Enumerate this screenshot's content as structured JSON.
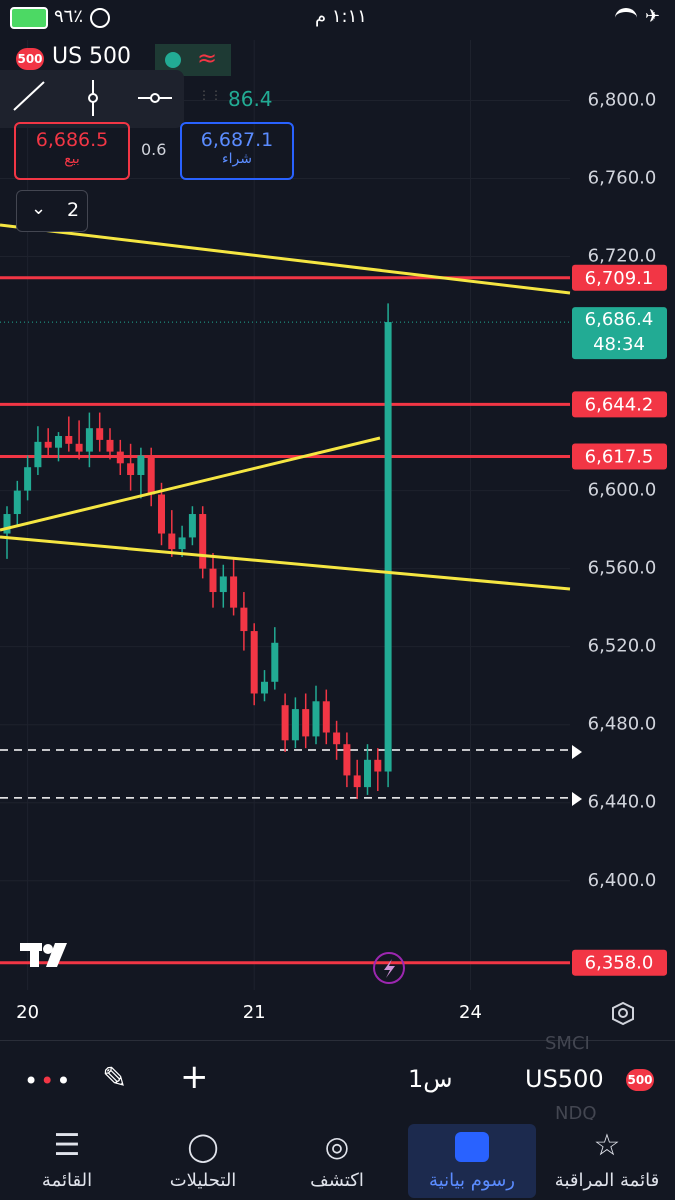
{
  "status_bar": {
    "time": "١:١١ م",
    "battery": "٩٦٪"
  },
  "header": {
    "badge": "500",
    "symbol": "US 500",
    "partial_price": "86.4",
    "sell": {
      "price": "6,686.5",
      "label": "بيع"
    },
    "spread": "0.6",
    "buy": {
      "price": "6,687.1",
      "label": "شراء"
    },
    "indicators_count": "2"
  },
  "chart_data": {
    "type": "candlestick",
    "x": [
      null,
      null,
      "20",
      null,
      null,
      null,
      null,
      null,
      null,
      null,
      null,
      null,
      null,
      null,
      null,
      null,
      null,
      null,
      null,
      null,
      null,
      null,
      null,
      null,
      "21",
      null,
      null,
      null,
      null,
      null,
      null,
      null,
      null,
      null,
      null,
      null,
      null,
      null,
      null,
      null,
      null,
      null,
      null,
      null,
      null,
      "24",
      null,
      null,
      null,
      null,
      null,
      null,
      null,
      null
    ],
    "open": [
      6578,
      6588,
      6600,
      6612,
      6625,
      6622,
      6628,
      6624,
      6620,
      6632,
      6626,
      6620,
      6614,
      6608,
      6618,
      6598,
      6578,
      6570,
      6576,
      6588,
      6560,
      6548,
      6556,
      6540,
      6528,
      6496,
      6502,
      6490,
      6472,
      6488,
      6474,
      6492,
      6476,
      6470,
      6454,
      6448,
      6462,
      6456,
      null,
      null,
      null,
      null,
      null,
      null,
      null,
      null,
      null,
      null,
      null,
      null,
      null,
      null,
      null,
      null
    ],
    "high": [
      6592,
      6605,
      6618,
      6633,
      6632,
      6630,
      6638,
      6636,
      6640,
      6640,
      6632,
      6626,
      6624,
      6622,
      6622,
      6604,
      6590,
      6582,
      6592,
      6592,
      6568,
      6562,
      6566,
      6548,
      6532,
      6508,
      6530,
      6496,
      6494,
      6496,
      6500,
      6498,
      6482,
      6476,
      6462,
      6470,
      6468,
      6696,
      null,
      null,
      null,
      null,
      null,
      null,
      null,
      null,
      null,
      null,
      null,
      null,
      null,
      null,
      null,
      null
    ],
    "low": [
      6565,
      6582,
      6595,
      6608,
      6618,
      6615,
      6620,
      6616,
      6612,
      6620,
      6616,
      6608,
      6600,
      6596,
      6592,
      6572,
      6566,
      6566,
      6572,
      6555,
      6540,
      6540,
      6536,
      6518,
      6490,
      6492,
      6498,
      6466,
      6468,
      6468,
      6470,
      6470,
      6462,
      6448,
      6442,
      6444,
      6446,
      6448,
      null,
      null,
      null,
      null,
      null,
      null,
      null,
      null,
      null,
      null,
      null,
      null,
      null,
      null,
      null,
      null
    ],
    "close": [
      6588,
      6600,
      6612,
      6625,
      6622,
      6628,
      6624,
      6620,
      6632,
      6626,
      6620,
      6614,
      6608,
      6618,
      6598,
      6578,
      6570,
      6576,
      6588,
      6560,
      6548,
      6556,
      6540,
      6528,
      6496,
      6502,
      6522,
      6472,
      6488,
      6474,
      6492,
      6476,
      6470,
      6454,
      6448,
      6462,
      6456,
      6686.4,
      null,
      null,
      null,
      null,
      null,
      null,
      null,
      null,
      null,
      null,
      null,
      null,
      null,
      null,
      null,
      null
    ],
    "colors": {
      "up": "#22ab94",
      "down": "#f23645"
    },
    "ylim": [
      6344,
      6831
    ],
    "yticks": [
      {
        "value": 6800,
        "label": "6,800.0"
      },
      {
        "value": 6760,
        "label": "6,760.0"
      },
      {
        "value": 6720,
        "label": "6,720.0"
      },
      {
        "value": 6600,
        "label": "6,600.0"
      },
      {
        "value": 6560,
        "label": "6,560.0"
      },
      {
        "value": 6520,
        "label": "6,520.0"
      },
      {
        "value": 6480,
        "label": "6,480.0"
      },
      {
        "value": 6440,
        "label": "6,440.0"
      },
      {
        "value": 6400,
        "label": "6,400.0"
      }
    ],
    "price_lines": [
      {
        "value": 6709.1,
        "label": "6,709.1"
      },
      {
        "value": 6644.2,
        "label": "6,644.2"
      },
      {
        "value": 6617.5,
        "label": "6,617.5"
      },
      {
        "value": 6358.0,
        "label": "6,358.0"
      }
    ],
    "last_price": {
      "value": 6686.4,
      "label": "6,686.4",
      "countdown": "48:34"
    },
    "dashed_lines": [
      6467,
      6442.5
    ]
  },
  "toolbar": {
    "interval": "1س",
    "symbol": "US500",
    "badge": "500",
    "ghost": [
      "SMCI",
      "NDQ"
    ]
  },
  "nav": [
    {
      "label": "القائمة"
    },
    {
      "label": "التحليلات"
    },
    {
      "label": "اكتشف"
    },
    {
      "label": "رسوم بيانية"
    },
    {
      "label": "قائمة المراقبة"
    }
  ]
}
